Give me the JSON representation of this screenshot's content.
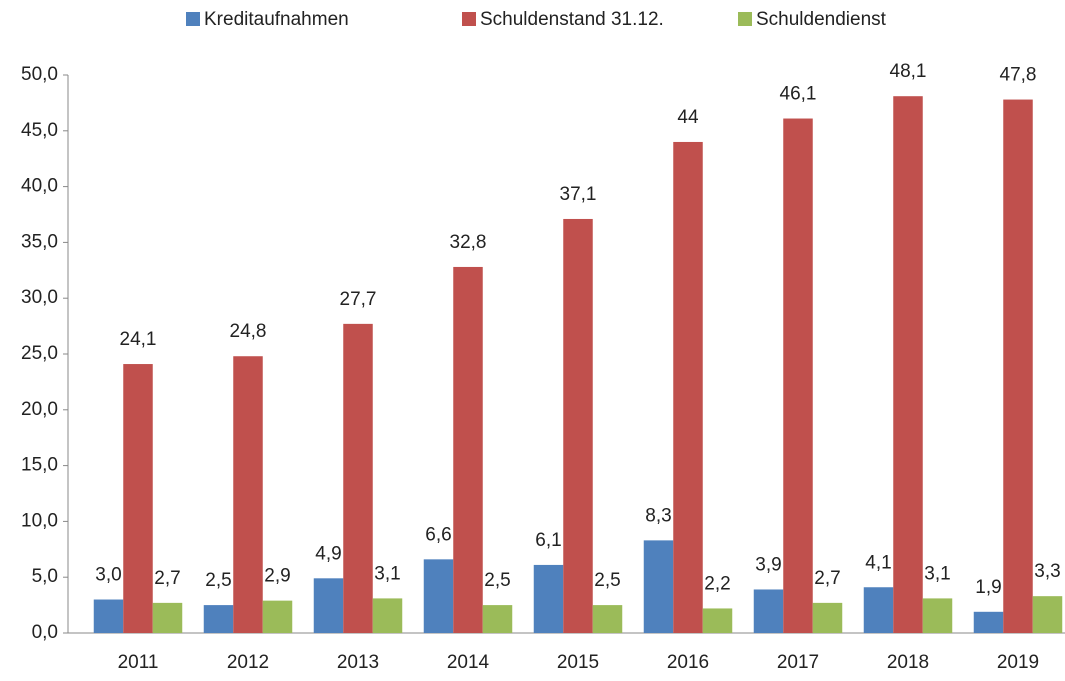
{
  "chart_data": {
    "type": "bar",
    "categories": [
      "2011",
      "2012",
      "2013",
      "2014",
      "2015",
      "2016",
      "2017",
      "2018",
      "2019"
    ],
    "series": [
      {
        "name": "Kreditaufnahmen",
        "color": "#4f81bd",
        "values": [
          3.0,
          2.5,
          4.9,
          6.6,
          6.1,
          8.3,
          3.9,
          4.1,
          1.9
        ],
        "value_labels": [
          "3,0",
          "2,5",
          "4,9",
          "6,6",
          "6,1",
          "8,3",
          "3,9",
          "4,1",
          "1,9"
        ]
      },
      {
        "name": "Schuldenstand 31.12.",
        "color": "#c0504d",
        "values": [
          24.1,
          24.8,
          27.7,
          32.8,
          37.1,
          44,
          46.1,
          48.1,
          47.8
        ],
        "value_labels": [
          "24,1",
          "24,8",
          "27,7",
          "32,8",
          "37,1",
          "44",
          "46,1",
          "48,1",
          "47,8"
        ]
      },
      {
        "name": "Schuldendienst",
        "color": "#9bbb59",
        "values": [
          2.7,
          2.9,
          3.1,
          2.5,
          2.5,
          2.2,
          2.7,
          3.1,
          3.3
        ],
        "value_labels": [
          "2,7",
          "2,9",
          "3,1",
          "2,5",
          "2,5",
          "2,2",
          "2,7",
          "3,1",
          "3,3"
        ]
      }
    ],
    "ylim": [
      0,
      50
    ],
    "yticks": [
      {
        "value": 0,
        "label": "0,0"
      },
      {
        "value": 5,
        "label": "5,0"
      },
      {
        "value": 10,
        "label": "10,0"
      },
      {
        "value": 15,
        "label": "15,0"
      },
      {
        "value": 20,
        "label": "20,0"
      },
      {
        "value": 25,
        "label": "25,0"
      },
      {
        "value": 30,
        "label": "30,0"
      },
      {
        "value": 35,
        "label": "35,0"
      },
      {
        "value": 40,
        "label": "40,0"
      },
      {
        "value": 45,
        "label": "45,0"
      },
      {
        "value": 50,
        "label": "50,0"
      }
    ],
    "legend": "top"
  }
}
